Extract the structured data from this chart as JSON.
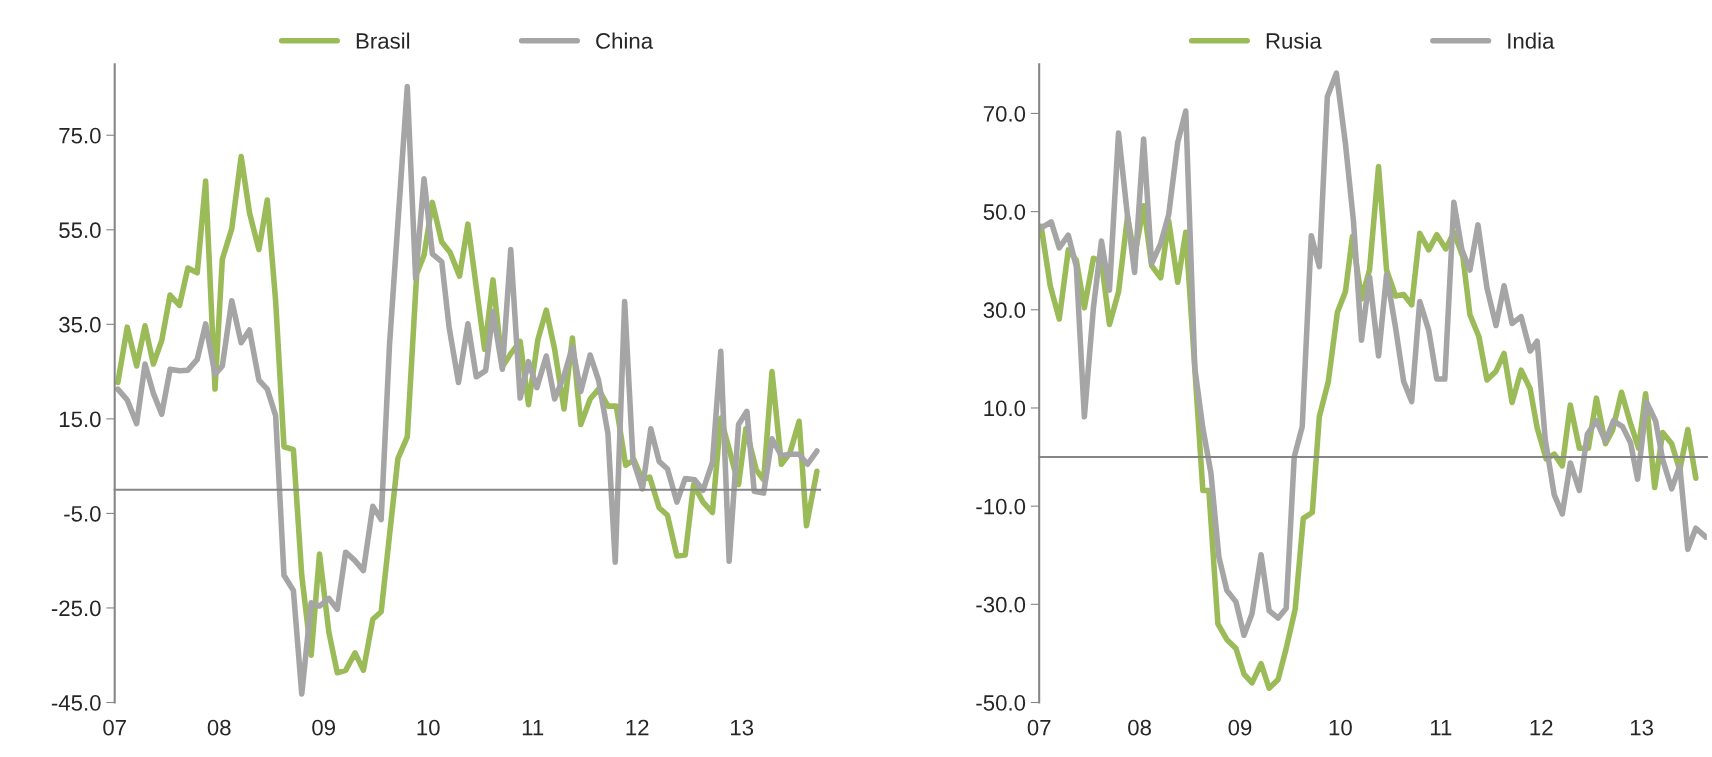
{
  "chart_data": [
    {
      "type": "line",
      "legend": "top",
      "xlim": [
        2007,
        2013.75
      ],
      "xticks": [
        {
          "value": 2007,
          "label": "07"
        },
        {
          "value": 2008,
          "label": "08"
        },
        {
          "value": 2009,
          "label": "09"
        },
        {
          "value": 2010,
          "label": "10"
        },
        {
          "value": 2011,
          "label": "11"
        },
        {
          "value": 2012,
          "label": "12"
        },
        {
          "value": 2013,
          "label": "13"
        }
      ],
      "ylim": [
        -45,
        90
      ],
      "yticks": [
        {
          "value": -45,
          "label": "-45.0"
        },
        {
          "value": -25,
          "label": "-25.0"
        },
        {
          "value": -5,
          "label": "-5.0"
        },
        {
          "value": 15,
          "label": "15.0"
        },
        {
          "value": 35,
          "label": "35.0"
        },
        {
          "value": 55,
          "label": "55.0"
        },
        {
          "value": 75,
          "label": "75.0"
        }
      ],
      "series": [
        {
          "name": "Brasil",
          "color": "#9bbb59",
          "x": [
            2007.03,
            2007.12,
            2007.21,
            2007.29,
            2007.37,
            2007.45,
            2007.53,
            2007.62,
            2007.7,
            2007.79,
            2007.87,
            2007.96,
            2008.03,
            2008.12,
            2008.21,
            2008.29,
            2008.38,
            2008.46,
            2008.54,
            2008.62,
            2008.71,
            2008.79,
            2008.88,
            2008.96,
            2009.05,
            2009.13,
            2009.21,
            2009.3,
            2009.38,
            2009.47,
            2009.55,
            2009.63,
            2009.71,
            2009.8,
            2009.89,
            2009.96,
            2010.04,
            2010.13,
            2010.21,
            2010.3,
            2010.38,
            2010.46,
            2010.54,
            2010.62,
            2010.71,
            2010.79,
            2010.88,
            2010.96,
            2011.05,
            2011.13,
            2011.21,
            2011.3,
            2011.38,
            2011.46,
            2011.55,
            2011.63,
            2011.72,
            2011.8,
            2011.89,
            2011.97,
            2012.05,
            2012.12,
            2012.21,
            2012.29,
            2012.38,
            2012.46,
            2012.54,
            2012.63,
            2012.72,
            2012.8,
            2012.97,
            2013.04,
            2013.14,
            2013.21,
            2013.29,
            2013.38,
            2013.46,
            2013.55,
            2013.62,
            2013.72
          ],
          "values": [
            22.7,
            34.4,
            26.2,
            34.7,
            26.6,
            31.6,
            41.2,
            39.0,
            46.9,
            45.9,
            65.3,
            21.3,
            48.8,
            55.2,
            70.5,
            58.6,
            50.8,
            61.3,
            40.0,
            9.1,
            8.5,
            -18.1,
            -35.0,
            -13.6,
            -30.2,
            -38.7,
            -38.2,
            -34.5,
            -38.2,
            -27.4,
            -25.8,
            -9.6,
            6.6,
            11.2,
            45.7,
            49.6,
            60.8,
            52.4,
            50.2,
            45.2,
            56.2,
            42.9,
            29.7,
            44.4,
            26.0,
            28.8,
            31.4,
            18.0,
            31.8,
            38.0,
            29.7,
            17.1,
            32.1,
            13.8,
            19.2,
            21.3,
            17.7,
            17.7,
            5.2,
            6.3,
            2.1,
            2.7,
            -3.8,
            -5.4,
            -14.0,
            -13.8,
            1.1,
            -2.6,
            -4.8,
            15.2,
            1.1,
            12.9,
            4.2,
            2.1,
            25.0,
            5.4,
            7.7,
            14.5,
            -7.6,
            3.9
          ]
        },
        {
          "name": "China",
          "color": "#a5a5a5",
          "x": [
            2007.03,
            2007.12,
            2007.21,
            2007.29,
            2007.37,
            2007.45,
            2007.53,
            2007.62,
            2007.7,
            2007.79,
            2007.87,
            2007.96,
            2008.03,
            2008.12,
            2008.21,
            2008.29,
            2008.38,
            2008.46,
            2008.54,
            2008.62,
            2008.71,
            2008.79,
            2008.88,
            2008.96,
            2009.05,
            2009.13,
            2009.21,
            2009.3,
            2009.38,
            2009.47,
            2009.55,
            2009.63,
            2009.8,
            2009.88,
            2009.96,
            2010.04,
            2010.13,
            2010.2,
            2010.29,
            2010.38,
            2010.46,
            2010.55,
            2010.62,
            2010.71,
            2010.79,
            2010.88,
            2010.96,
            2011.04,
            2011.13,
            2011.21,
            2011.3,
            2011.38,
            2011.46,
            2011.55,
            2011.63,
            2011.72,
            2011.79,
            2011.88,
            2011.96,
            2012.05,
            2012.13,
            2012.21,
            2012.29,
            2012.38,
            2012.46,
            2012.55,
            2012.63,
            2012.72,
            2012.8,
            2012.88,
            2012.97,
            2013.05,
            2013.12,
            2013.21,
            2013.29,
            2013.38,
            2013.46,
            2013.55,
            2013.63,
            2013.72
          ],
          "values": [
            21.3,
            19.0,
            14.0,
            26.6,
            20.4,
            16.0,
            25.5,
            25.2,
            25.3,
            27.6,
            35.1,
            24.4,
            26.2,
            40.0,
            31.1,
            33.8,
            23.2,
            21.3,
            15.7,
            -18.1,
            -21.3,
            -43.2,
            -23.9,
            -24.6,
            -23.0,
            -25.3,
            -13.2,
            -15.0,
            -17.1,
            -3.5,
            -6.3,
            30.7,
            85.3,
            44.7,
            65.8,
            49.9,
            48.2,
            34.4,
            22.7,
            35.1,
            23.9,
            25.2,
            37.7,
            25.5,
            50.8,
            19.4,
            27.1,
            21.6,
            28.3,
            19.2,
            24.1,
            30.2,
            20.8,
            28.5,
            23.2,
            11.9,
            -15.3,
            39.8,
            6.3,
            0.2,
            12.9,
            6.0,
            4.4,
            -2.6,
            2.4,
            2.1,
            -0.1,
            5.8,
            29.3,
            -15.1,
            13.8,
            16.6,
            -0.3,
            -0.7,
            10.8,
            7.2,
            7.5,
            7.5,
            5.4,
            8.2
          ]
        }
      ]
    },
    {
      "type": "line",
      "legend": "top",
      "xlim": [
        2007,
        2013.65
      ],
      "xticks": [
        {
          "value": 2007,
          "label": "07"
        },
        {
          "value": 2008,
          "label": "08"
        },
        {
          "value": 2009,
          "label": "09"
        },
        {
          "value": 2010,
          "label": "10"
        },
        {
          "value": 2011,
          "label": "11"
        },
        {
          "value": 2012,
          "label": "12"
        },
        {
          "value": 2013,
          "label": "13"
        }
      ],
      "ylim": [
        -50,
        80
      ],
      "yticks": [
        {
          "value": -50,
          "label": "-50.0"
        },
        {
          "value": -30,
          "label": "-30.0"
        },
        {
          "value": -10,
          "label": "-10.0"
        },
        {
          "value": 10,
          "label": "10.0"
        },
        {
          "value": 30,
          "label": "30.0"
        },
        {
          "value": 50,
          "label": "50.0"
        },
        {
          "value": 70,
          "label": "70.0"
        }
      ],
      "series": [
        {
          "name": "Rusia",
          "color": "#9bbb59",
          "x": [
            2007.02,
            2007.11,
            2007.2,
            2007.29,
            2007.37,
            2007.45,
            2007.54,
            2007.62,
            2007.7,
            2007.79,
            2007.88,
            2007.95,
            2008.04,
            2008.12,
            2008.21,
            2008.29,
            2008.38,
            2008.46,
            2008.55,
            2008.63,
            2008.69,
            2008.78,
            2008.87,
            2008.96,
            2009.04,
            2009.12,
            2009.21,
            2009.29,
            2009.38,
            2009.46,
            2009.55,
            2009.63,
            2009.72,
            2009.79,
            2009.88,
            2009.97,
            2010.05,
            2010.12,
            2010.21,
            2010.29,
            2010.38,
            2010.46,
            2010.55,
            2010.63,
            2010.71,
            2010.79,
            2010.88,
            2010.96,
            2011.05,
            2011.13,
            2011.22,
            2011.29,
            2011.38,
            2011.46,
            2011.55,
            2011.63,
            2011.71,
            2011.8,
            2011.89,
            2011.96,
            2012.05,
            2012.13,
            2012.21,
            2012.29,
            2012.38,
            2012.47,
            2012.55,
            2012.64,
            2012.71,
            2012.8,
            2012.89,
            2012.97,
            2013.04,
            2013.13,
            2013.21,
            2013.3,
            2013.38,
            2013.46,
            2013.54
          ],
          "values": [
            47.0,
            34.9,
            28.1,
            42.2,
            40.1,
            30.4,
            40.5,
            39.9,
            27.0,
            33.6,
            49.0,
            40.8,
            51.2,
            39.0,
            36.5,
            48.1,
            35.6,
            45.8,
            18.1,
            -6.8,
            -6.8,
            -34.0,
            -37.2,
            -39.0,
            -44.2,
            -46.0,
            -42.1,
            -47.1,
            -45.3,
            -39.0,
            -31.0,
            -12.5,
            -11.3,
            8.2,
            15.4,
            29.5,
            33.7,
            44.9,
            32.2,
            38.1,
            59.2,
            38.1,
            32.8,
            33.1,
            31.0,
            45.6,
            42.2,
            45.3,
            42.4,
            45.8,
            40.8,
            29.0,
            24.5,
            15.7,
            17.5,
            21.1,
            11.1,
            17.7,
            13.9,
            5.9,
            -0.4,
            0.6,
            -1.8,
            10.6,
            1.8,
            1.8,
            12.0,
            2.7,
            5.4,
            13.2,
            6.8,
            1.8,
            12.9,
            -6.2,
            5.0,
            2.7,
            -2.7,
            5.6,
            -4.3
          ]
        },
        {
          "name": "India",
          "color": "#a5a5a5",
          "x": [
            2007.02,
            2007.12,
            2007.2,
            2007.29,
            2007.37,
            2007.45,
            2007.54,
            2007.62,
            2007.7,
            2007.79,
            2007.88,
            2007.95,
            2008.04,
            2008.12,
            2008.21,
            2008.29,
            2008.38,
            2008.46,
            2008.55,
            2008.63,
            2008.71,
            2008.79,
            2008.87,
            2008.96,
            2009.04,
            2009.12,
            2009.21,
            2009.29,
            2009.38,
            2009.46,
            2009.54,
            2009.62,
            2009.71,
            2009.79,
            2009.87,
            2009.96,
            2010.05,
            2010.13,
            2010.21,
            2010.29,
            2010.38,
            2010.46,
            2010.55,
            2010.63,
            2010.71,
            2010.79,
            2010.88,
            2010.96,
            2011.04,
            2011.13,
            2011.21,
            2011.29,
            2011.37,
            2011.46,
            2011.55,
            2011.63,
            2011.71,
            2011.8,
            2011.89,
            2011.96,
            2012.04,
            2012.13,
            2012.21,
            2012.29,
            2012.38,
            2012.46,
            2012.55,
            2012.64,
            2012.72,
            2012.81,
            2012.89,
            2012.96,
            2013.05,
            2013.14,
            2013.21,
            2013.3,
            2013.38,
            2013.46,
            2013.54,
            2013.64
          ],
          "values": [
            46.7,
            47.9,
            42.6,
            45.2,
            38.8,
            8.2,
            30.4,
            44.0,
            34.0,
            66.0,
            49.0,
            37.6,
            64.8,
            39.4,
            43.5,
            49.4,
            64.1,
            70.5,
            18.1,
            5.9,
            -3.2,
            -20.4,
            -27.2,
            -29.5,
            -36.3,
            -31.9,
            -19.9,
            -31.3,
            -32.8,
            -30.8,
            0.0,
            6.2,
            45.1,
            38.8,
            73.4,
            78.2,
            63.9,
            48.1,
            23.8,
            36.7,
            20.6,
            37.2,
            26.3,
            15.4,
            11.3,
            31.7,
            25.8,
            15.9,
            15.9,
            51.9,
            42.2,
            38.1,
            47.3,
            34.4,
            26.8,
            34.9,
            27.2,
            28.6,
            21.6,
            23.6,
            3.6,
            -7.7,
            -11.6,
            -1.2,
            -6.8,
            4.7,
            7.4,
            3.2,
            7.4,
            6.2,
            2.9,
            -4.5,
            11.2,
            7.3,
            -0.5,
            -6.5,
            -1.8,
            -18.8,
            -14.5,
            -16.3
          ]
        }
      ]
    }
  ]
}
